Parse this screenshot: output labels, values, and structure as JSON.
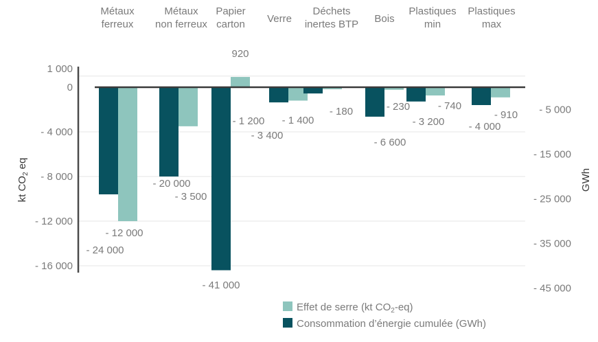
{
  "chart_data": {
    "type": "bar",
    "categories": [
      [
        "Métaux",
        "ferreux"
      ],
      [
        "Métaux",
        "non ferreux"
      ],
      [
        "Papier",
        "carton"
      ],
      [
        "Verre"
      ],
      [
        "Déchets",
        "inertes BTP"
      ],
      [
        "Bois"
      ],
      [
        "Plastiques",
        "min"
      ],
      [
        "Plastiques",
        "max"
      ]
    ],
    "series": [
      {
        "name": "Consommation d’énergie cumulée (GWh)",
        "axis": "right",
        "color": "#08525f",
        "values": [
          -24000,
          -20000,
          -41000,
          -3400,
          -1400,
          -6600,
          -3200,
          -4000
        ],
        "labels": [
          "- 24 000",
          "- 20 000",
          "- 41 000",
          "- 3 400",
          "- 1 400",
          "- 6 600",
          "- 3 200",
          "- 4 000"
        ]
      },
      {
        "name": "Effet de serre (kt CO2-eq)",
        "axis": "left",
        "color": "#8ec5bd",
        "values": [
          -12000,
          -3500,
          920,
          -1200,
          -180,
          -230,
          -740,
          -910
        ],
        "labels": [
          "- 12 000",
          "- 3 500",
          "920",
          "- 1 200",
          "- 180",
          "- 230",
          "- 740",
          "- 910"
        ]
      }
    ],
    "left_axis": {
      "label": "kt CO2 eq",
      "range": [
        -16500,
        1000
      ],
      "ticks": [
        1000,
        0,
        -4000,
        -8000,
        -12000,
        -16000
      ],
      "tick_labels": [
        "1 000",
        "0",
        "- 4 000",
        "- 8 000",
        "- 12 000",
        "- 16 000"
      ]
    },
    "right_axis": {
      "label": "GWh",
      "ticks": [
        -5000,
        -15000,
        -25000,
        -35000,
        -45000
      ],
      "tick_labels": [
        "- 5 000",
        "- 15 000",
        "- 25 000",
        "- 35 000",
        "- 45 000"
      ]
    },
    "legend": {
      "placement": "bottom-center",
      "items": [
        {
          "label_main": "Effet de serre (kt CO",
          "label_sub": "2",
          "label_end": "-eq)",
          "color": "#8ec5bd"
        },
        {
          "label_main": "Consommation d’énergie cumulée (GWh)",
          "label_sub": "",
          "label_end": "",
          "color": "#08525f"
        }
      ]
    },
    "grid": true
  }
}
